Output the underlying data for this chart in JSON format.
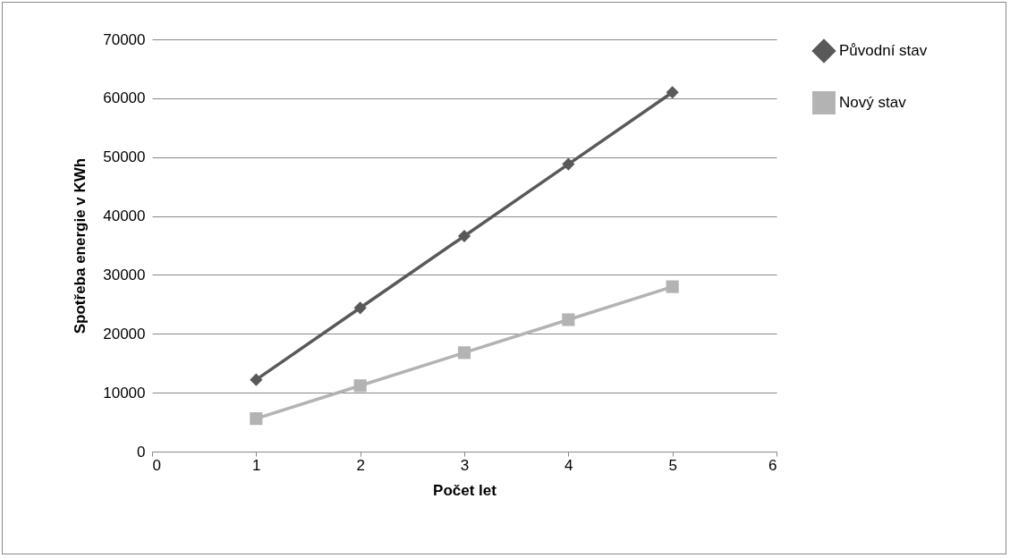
{
  "chart_data": {
    "type": "line",
    "xlabel": "Počet let",
    "ylabel": "Spotřeba energie v KWh",
    "x": [
      1,
      2,
      3,
      4,
      5
    ],
    "series": [
      {
        "name": "Původní stav",
        "color": "#595959",
        "marker": "diamond",
        "values": [
          12200,
          24400,
          36600,
          48800,
          61000
        ]
      },
      {
        "name": "Nový stav",
        "color": "#b3b3b3",
        "marker": "square",
        "values": [
          5600,
          11200,
          16800,
          22400,
          28000
        ]
      }
    ],
    "xlim": [
      0,
      6
    ],
    "xticks": [
      0,
      1,
      2,
      3,
      4,
      5,
      6
    ],
    "ylim": [
      0,
      70000
    ],
    "yticks": [
      0,
      10000,
      20000,
      30000,
      40000,
      50000,
      60000,
      70000
    ],
    "grid": "y",
    "legend": "right",
    "line_style": "solid"
  }
}
